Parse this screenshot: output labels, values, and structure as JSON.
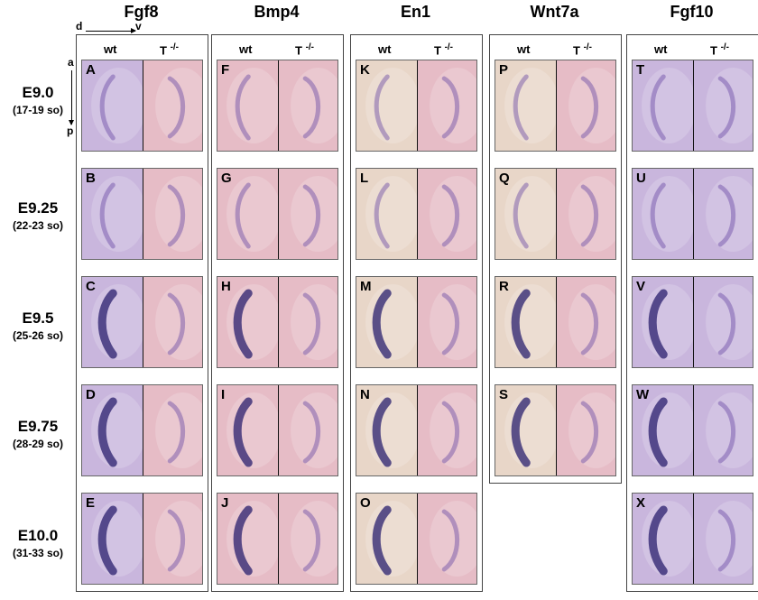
{
  "axes": {
    "d": "d",
    "v": "v",
    "a": "a",
    "p": "p"
  },
  "genotype": {
    "wt": "wt",
    "mut_base": "T",
    "mut_sup": "-/-"
  },
  "stages": [
    {
      "stage": "E9.0",
      "somites": "(17-19 so)"
    },
    {
      "stage": "E9.25",
      "somites": "(22-23 so)"
    },
    {
      "stage": "E9.5",
      "somites": "(25-26 so)"
    },
    {
      "stage": "E9.75",
      "somites": "(28-29 so)"
    },
    {
      "stage": "E10.0",
      "somites": "(31-33 so)"
    }
  ],
  "genes": [
    {
      "name": "Fgf8",
      "letters": [
        "A",
        "B",
        "C",
        "D",
        "E"
      ]
    },
    {
      "name": "Bmp4",
      "letters": [
        "F",
        "G",
        "H",
        "I",
        "J"
      ]
    },
    {
      "name": "En1",
      "letters": [
        "K",
        "L",
        "M",
        "N",
        "O"
      ]
    },
    {
      "name": "Wnt7a",
      "letters": [
        "P",
        "Q",
        "R",
        "S"
      ]
    },
    {
      "name": "Fgf10",
      "letters": [
        "T",
        "U",
        "V",
        "W",
        "X"
      ]
    }
  ],
  "colors": {
    "stain_dark": "#2a1f6e",
    "stain_mid": "#6b4aa3",
    "tissue_pink": "#e6bcc6",
    "tissue_lavender": "#c9b6dd",
    "tissue_beige": "#e8d6c8"
  }
}
